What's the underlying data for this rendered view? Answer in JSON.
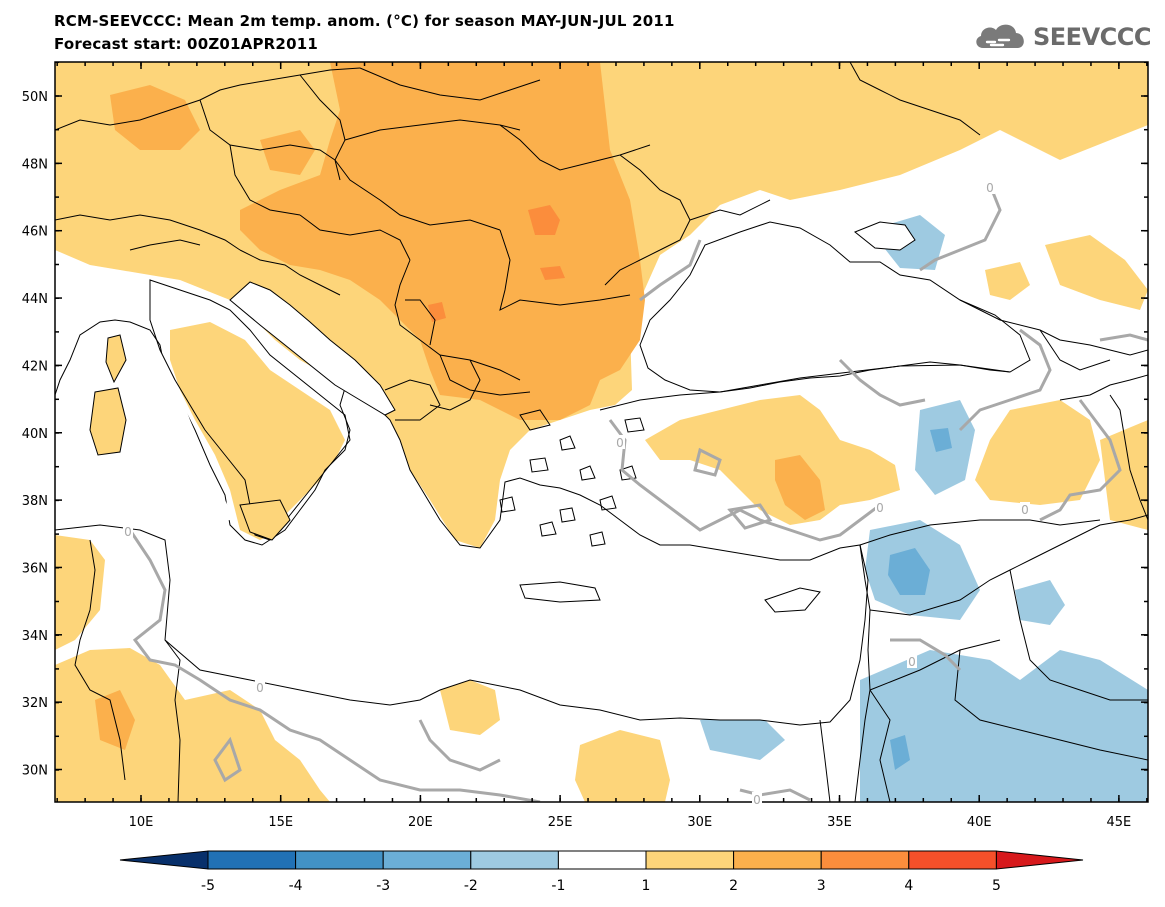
{
  "header": {
    "title_line1": "RCM-SEEVCCC: Mean 2m temp. anom. (°C) for season MAY-JUN-JUL 2011",
    "title_line2": "Forecast start: 00Z01APR2011",
    "logo_text": "SEEVCCC"
  },
  "map": {
    "lat_labels": [
      "50N",
      "48N",
      "46N",
      "44N",
      "42N",
      "40N",
      "38N",
      "36N",
      "34N",
      "32N",
      "30N"
    ],
    "lon_labels": [
      "10E",
      "15E",
      "20E",
      "25E",
      "30E",
      "35E",
      "40E",
      "45E"
    ],
    "contour_labels": [
      "0",
      "0",
      "0",
      "0",
      "0",
      "0",
      "0",
      "0"
    ]
  },
  "colorbar": {
    "ticks": [
      "-5",
      "-4",
      "-3",
      "-2",
      "-1",
      "1",
      "2",
      "3",
      "4",
      "5"
    ],
    "colors": [
      "#08306b",
      "#2171b5",
      "#4292c6",
      "#6baed6",
      "#9ecae1",
      "#ffffff",
      "#fdd57a",
      "#fbb04c",
      "#fb8d3c",
      "#f5502a",
      "#d7191c"
    ]
  },
  "palette": {
    "anom_1_2": "#fdd57a",
    "anom_2_3": "#fbb04c",
    "anom_3_4": "#fb8d3c",
    "anom_neg_1_2": "#9ecae1",
    "anom_neg_2_3": "#6baed6",
    "zero_contour": "#a8a8a8"
  }
}
